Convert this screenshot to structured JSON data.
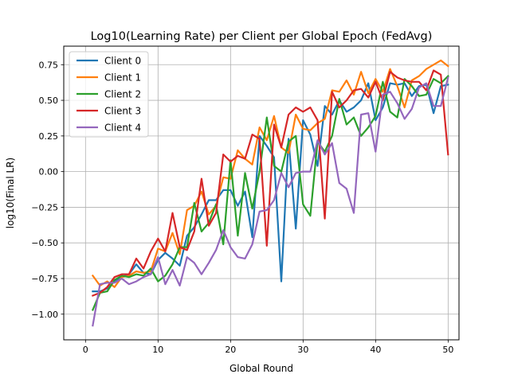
{
  "chart_data": {
    "type": "line",
    "title": "Log10(Learning Rate) per Client per Global Epoch (FedAvg)",
    "xlabel": "Global Round",
    "ylabel": "log10(Final LR)",
    "xlim": [
      -3,
      51.5
    ],
    "ylim": [
      -1.18,
      0.88
    ],
    "xticks": [
      0,
      10,
      20,
      30,
      40,
      50
    ],
    "yticks": [
      -1.0,
      -0.75,
      -0.5,
      -0.25,
      0.0,
      0.25,
      0.5,
      0.75
    ],
    "ytick_labels": [
      "−1.00",
      "−0.75",
      "−0.50",
      "−0.25",
      "0.00",
      "0.25",
      "0.50",
      "0.75"
    ],
    "grid": true,
    "legend_position": "upper-left",
    "x": [
      1,
      2,
      3,
      4,
      5,
      6,
      7,
      8,
      9,
      10,
      11,
      12,
      13,
      14,
      15,
      16,
      17,
      18,
      19,
      20,
      21,
      22,
      23,
      24,
      25,
      26,
      27,
      28,
      29,
      30,
      31,
      32,
      33,
      34,
      35,
      36,
      37,
      38,
      39,
      40,
      41,
      42,
      43,
      44,
      45,
      46,
      47,
      48,
      49,
      50
    ],
    "series": [
      {
        "name": "Client 0",
        "color": "#1f77b4",
        "values": [
          -0.84,
          -0.84,
          -0.82,
          -0.77,
          -0.74,
          -0.72,
          -0.65,
          -0.71,
          -0.72,
          -0.62,
          -0.57,
          -0.61,
          -0.66,
          -0.45,
          -0.39,
          -0.3,
          -0.2,
          -0.2,
          -0.13,
          -0.13,
          -0.24,
          -0.14,
          -0.46,
          0.25,
          0.18,
          0.1,
          -0.77,
          0.23,
          -0.4,
          0.36,
          0.26,
          0.04,
          0.46,
          0.4,
          0.5,
          0.42,
          0.45,
          0.5,
          0.62,
          0.36,
          0.45,
          0.62,
          0.61,
          0.62,
          0.53,
          0.6,
          0.61,
          0.41,
          0.6,
          0.61
        ]
      },
      {
        "name": "Client 1",
        "color": "#ff7f0e",
        "values": [
          -0.73,
          -0.8,
          -0.77,
          -0.81,
          -0.74,
          -0.73,
          -0.7,
          -0.71,
          -0.7,
          -0.54,
          -0.56,
          -0.43,
          -0.58,
          -0.27,
          -0.24,
          -0.14,
          -0.3,
          -0.24,
          -0.04,
          -0.05,
          0.15,
          0.09,
          0.05,
          0.31,
          0.22,
          0.39,
          0.17,
          0.13,
          0.4,
          0.3,
          0.29,
          0.34,
          0.37,
          0.57,
          0.56,
          0.64,
          0.54,
          0.7,
          0.55,
          0.65,
          0.56,
          0.72,
          0.6,
          0.45,
          0.64,
          0.67,
          0.72,
          0.75,
          0.78,
          0.74
        ]
      },
      {
        "name": "Client 2",
        "color": "#2ca02c",
        "values": [
          -0.97,
          -0.85,
          -0.84,
          -0.76,
          -0.73,
          -0.74,
          -0.72,
          -0.73,
          -0.68,
          -0.77,
          -0.73,
          -0.65,
          -0.53,
          -0.53,
          -0.22,
          -0.42,
          -0.36,
          -0.23,
          -0.51,
          0.08,
          -0.45,
          -0.01,
          -0.26,
          0.0,
          0.38,
          0.04,
          0.0,
          0.21,
          0.25,
          -0.23,
          -0.31,
          0.21,
          0.14,
          0.25,
          0.51,
          0.33,
          0.38,
          0.25,
          0.31,
          0.39,
          0.63,
          0.42,
          0.38,
          0.65,
          0.6,
          0.53,
          0.54,
          0.65,
          0.62,
          0.67
        ]
      },
      {
        "name": "Client 3",
        "color": "#d62728",
        "values": [
          -0.87,
          -0.85,
          -0.81,
          -0.74,
          -0.72,
          -0.72,
          -0.61,
          -0.68,
          -0.56,
          -0.47,
          -0.56,
          -0.29,
          -0.53,
          -0.55,
          -0.42,
          -0.05,
          -0.38,
          -0.29,
          0.12,
          0.07,
          0.11,
          0.09,
          0.26,
          0.23,
          -0.52,
          0.33,
          0.17,
          0.4,
          0.45,
          0.42,
          0.45,
          0.36,
          -0.33,
          0.56,
          0.45,
          0.5,
          0.57,
          0.58,
          0.52,
          0.63,
          0.5,
          0.7,
          0.66,
          0.64,
          0.63,
          0.63,
          0.57,
          0.71,
          0.68,
          0.12
        ]
      },
      {
        "name": "Client 4",
        "color": "#9467bd",
        "values": [
          -1.08,
          -0.79,
          -0.78,
          -0.78,
          -0.75,
          -0.79,
          -0.77,
          -0.74,
          -0.72,
          -0.6,
          -0.79,
          -0.69,
          -0.8,
          -0.6,
          -0.64,
          -0.72,
          -0.64,
          -0.55,
          -0.41,
          -0.53,
          -0.6,
          -0.61,
          -0.51,
          -0.28,
          -0.27,
          -0.2,
          -0.01,
          -0.11,
          -0.01,
          0.0,
          0.0,
          0.22,
          0.12,
          0.2,
          -0.08,
          -0.12,
          -0.29,
          0.4,
          0.41,
          0.14,
          0.54,
          0.56,
          0.48,
          0.37,
          0.44,
          0.59,
          0.62,
          0.46,
          0.46,
          0.66
        ]
      }
    ]
  }
}
